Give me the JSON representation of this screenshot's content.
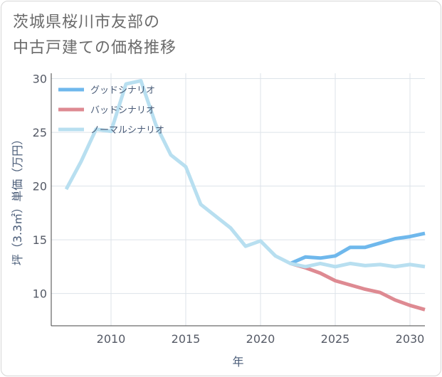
{
  "title_lines": [
    "茨城県桜川市友部の",
    "中古戸建ての価格推移"
  ],
  "chart_data": {
    "type": "line",
    "xlabel": "年",
    "ylabel": "坪（3.3㎡）単価（万円）",
    "xlim": [
      2006,
      2031
    ],
    "ylim": [
      7,
      30.5
    ],
    "xticks": [
      2010,
      2015,
      2020,
      2025,
      2030
    ],
    "yticks": [
      10,
      15,
      20,
      25,
      30
    ],
    "grid": true,
    "legend_position": "top-left",
    "series": [
      {
        "name": "グッドシナリオ",
        "color": "#6fb8ec",
        "x": [
          2022,
          2023,
          2024,
          2025,
          2026,
          2027,
          2028,
          2029,
          2030,
          2031
        ],
        "y": [
          12.8,
          13.4,
          13.3,
          13.5,
          14.3,
          14.3,
          14.7,
          15.1,
          15.3,
          15.6
        ]
      },
      {
        "name": "バッドシナリオ",
        "color": "#de8a92",
        "x": [
          2022,
          2023,
          2024,
          2025,
          2026,
          2027,
          2028,
          2029,
          2030,
          2031
        ],
        "y": [
          12.8,
          12.4,
          11.9,
          11.2,
          10.8,
          10.4,
          10.1,
          9.4,
          8.9,
          8.5
        ]
      },
      {
        "name": "ノーマルシナリオ",
        "color": "#b8dff0",
        "x": [
          2007,
          2008,
          2009,
          2010,
          2011,
          2012,
          2013,
          2014,
          2015,
          2016,
          2017,
          2018,
          2019,
          2020,
          2021,
          2022,
          2023,
          2024,
          2025,
          2026,
          2027,
          2028,
          2029,
          2030,
          2031
        ],
        "y": [
          19.7,
          22.3,
          25.3,
          25.1,
          29.5,
          29.8,
          25.7,
          22.9,
          21.8,
          18.3,
          17.2,
          16.1,
          14.4,
          14.9,
          13.5,
          12.8,
          12.5,
          12.8,
          12.5,
          12.8,
          12.6,
          12.7,
          12.5,
          12.7,
          12.5
        ]
      }
    ]
  }
}
